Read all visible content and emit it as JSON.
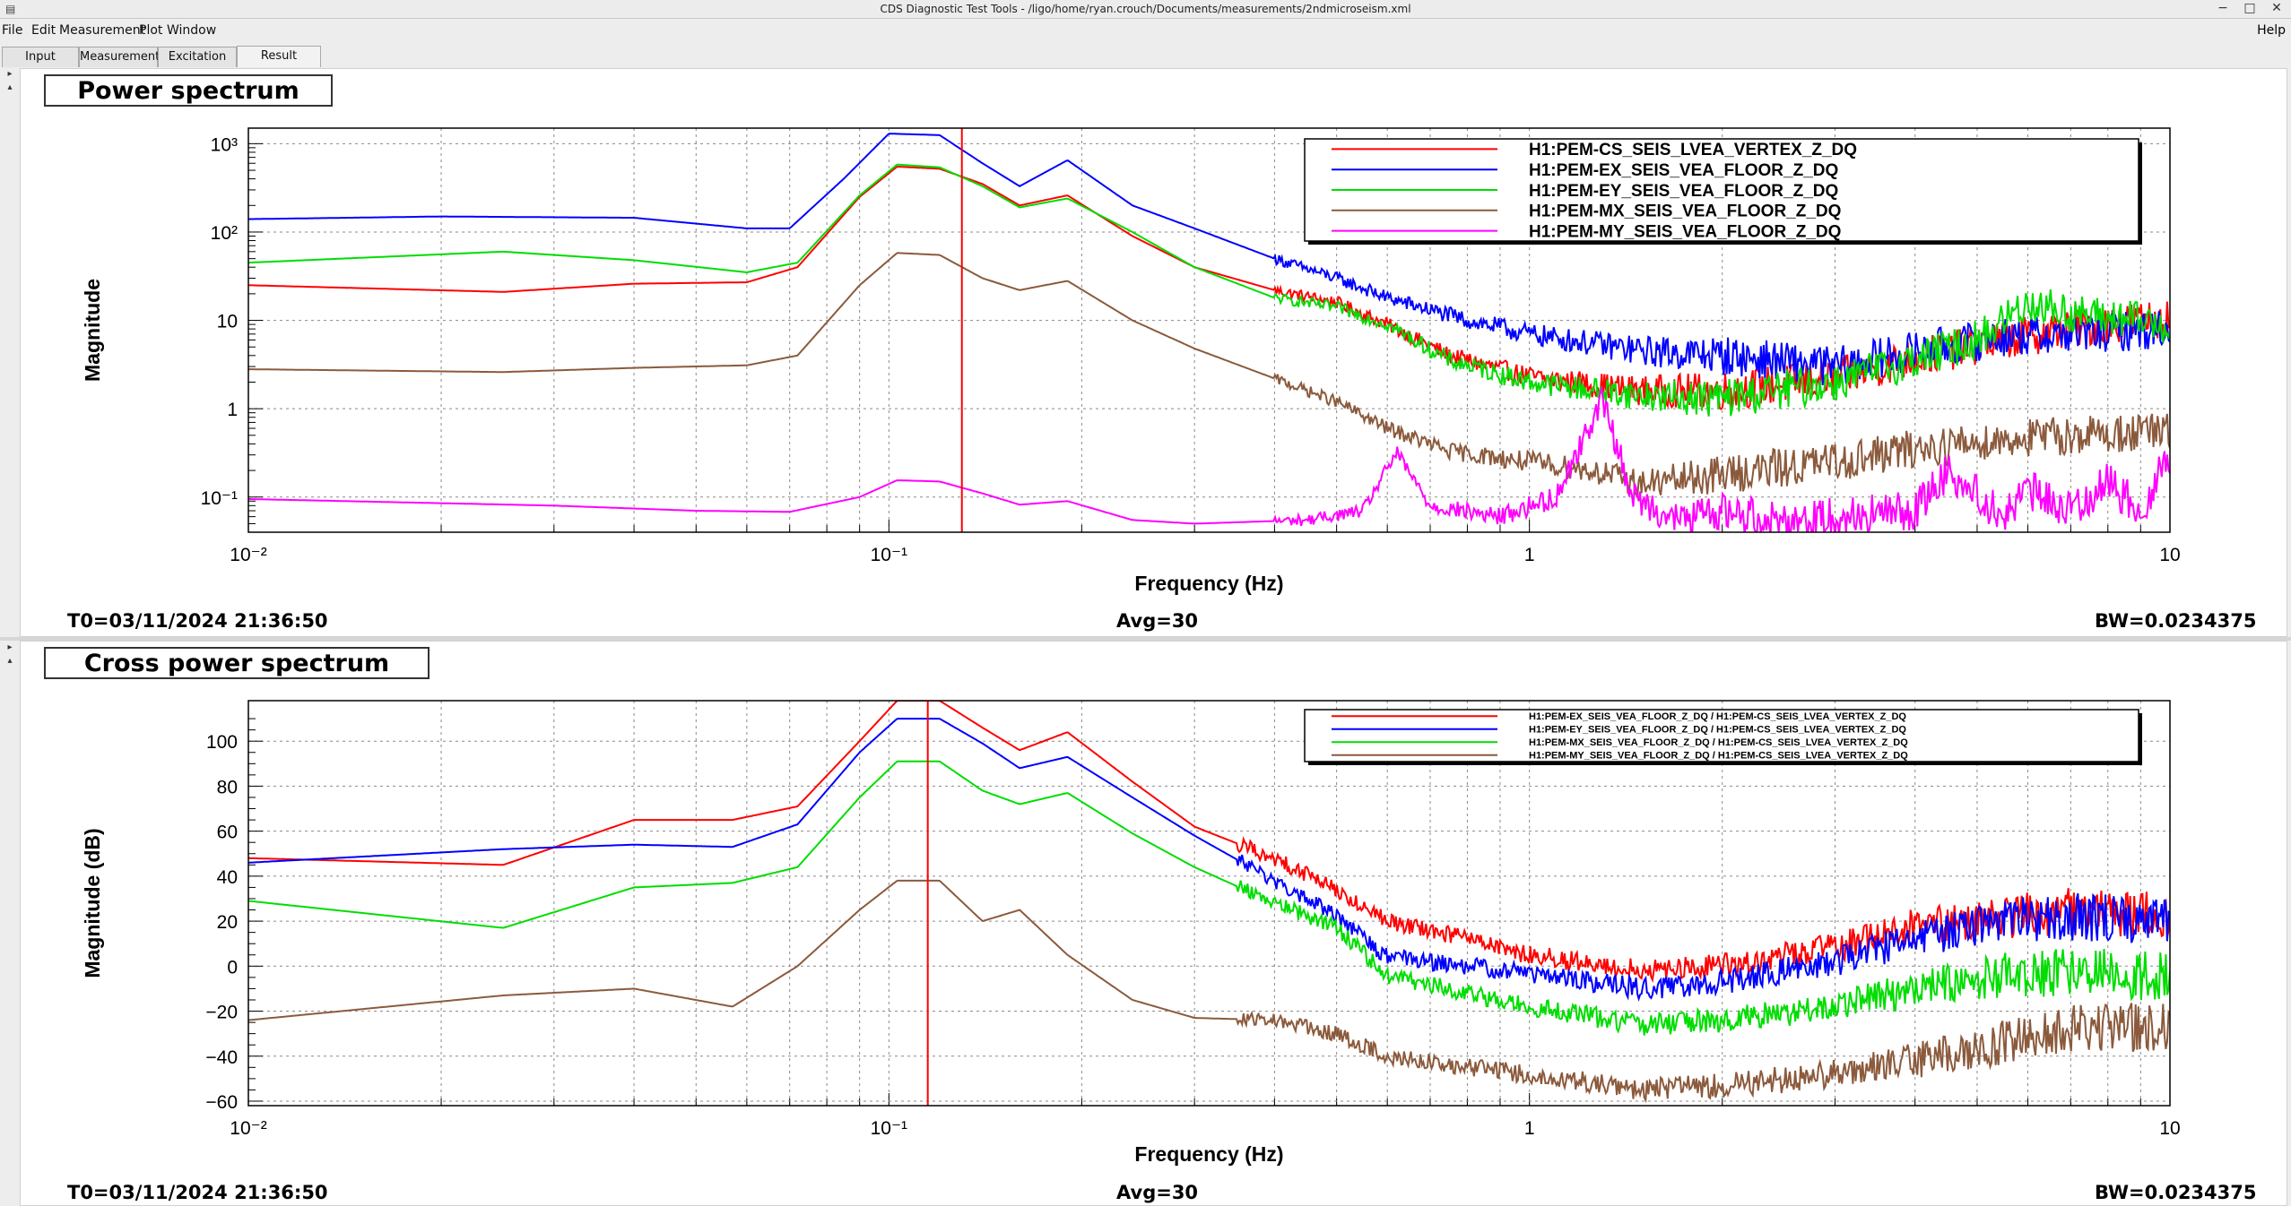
{
  "window": {
    "title": "CDS Diagnostic Test Tools - /ligo/home/ryan.crouch/Documents/measurements/2ndmicroseism.xml",
    "buttons": [
      "−",
      "□",
      "✕"
    ]
  },
  "menu": {
    "items": [
      "File",
      "Edit",
      "Measurement",
      "Plot",
      "Window"
    ],
    "help": "Help"
  },
  "tabs": [
    {
      "label": "Input"
    },
    {
      "label": "Measurement"
    },
    {
      "label": "Excitation"
    },
    {
      "label": "Result",
      "active": true
    }
  ],
  "panels": [
    {
      "title": "Power spectrum",
      "t0": "T0=03/11/2024 21:36:50",
      "avg": "Avg=30",
      "bw": "BW=0.0234375"
    },
    {
      "title": "Cross power spectrum",
      "t0": "T0=03/11/2024 21:36:50",
      "avg": "Avg=30",
      "bw": "BW=0.0234375"
    }
  ],
  "chart_data": [
    {
      "type": "line",
      "title": "Power spectrum",
      "xlabel": "Frequency (Hz)",
      "ylabel": "Magnitude",
      "xscale": "log",
      "yscale": "log",
      "xlim": [
        0.01,
        10
      ],
      "ylim": [
        0.04,
        1500
      ],
      "grid": true,
      "legend_position": "top-right",
      "cursor_x": 0.13,
      "x_ticks": [
        {
          "value": 0.01,
          "label": "10⁻²"
        },
        {
          "value": 0.1,
          "label": "10⁻¹"
        },
        {
          "value": 1,
          "label": "1"
        },
        {
          "value": 10,
          "label": "10"
        }
      ],
      "y_ticks": [
        {
          "value": 0.1,
          "label": "10⁻¹"
        },
        {
          "value": 1,
          "label": "1"
        },
        {
          "value": 10,
          "label": "10"
        },
        {
          "value": 100,
          "label": "10²"
        },
        {
          "value": 1000,
          "label": "10³"
        }
      ],
      "series": [
        {
          "name": "H1:PEM-CS_SEIS_LVEA_VERTEX_Z_DQ",
          "color": "#ff0000",
          "points": [
            [
              0.01,
              25
            ],
            [
              0.025,
              21
            ],
            [
              0.04,
              26
            ],
            [
              0.06,
              27
            ],
            [
              0.072,
              40
            ],
            [
              0.09,
              250
            ],
            [
              0.103,
              550
            ],
            [
              0.12,
              520
            ],
            [
              0.14,
              350
            ],
            [
              0.16,
              200
            ],
            [
              0.19,
              260
            ],
            [
              0.24,
              90
            ],
            [
              0.3,
              40
            ],
            [
              0.4,
              22
            ],
            [
              0.5,
              16
            ],
            [
              0.6,
              9
            ],
            [
              0.75,
              4
            ],
            [
              1,
              2.3
            ],
            [
              1.5,
              1.6
            ],
            [
              2,
              1.6
            ],
            [
              3,
              2.2
            ],
            [
              4,
              3.8
            ],
            [
              5.5,
              6
            ],
            [
              7,
              8
            ],
            [
              10,
              11
            ]
          ]
        },
        {
          "name": "H1:PEM-EX_SEIS_VEA_FLOOR_Z_DQ",
          "color": "#0000ff",
          "points": [
            [
              0.01,
              140
            ],
            [
              0.02,
              150
            ],
            [
              0.04,
              145
            ],
            [
              0.06,
              110
            ],
            [
              0.07,
              110
            ],
            [
              0.085,
              400
            ],
            [
              0.1,
              1300
            ],
            [
              0.12,
              1250
            ],
            [
              0.14,
              600
            ],
            [
              0.16,
              330
            ],
            [
              0.19,
              650
            ],
            [
              0.24,
              200
            ],
            [
              0.3,
              110
            ],
            [
              0.4,
              50
            ],
            [
              0.5,
              30
            ],
            [
              0.6,
              18
            ],
            [
              0.8,
              10
            ],
            [
              1,
              7
            ],
            [
              1.5,
              4.5
            ],
            [
              2,
              4
            ],
            [
              3,
              3
            ],
            [
              4,
              4.5
            ],
            [
              5.5,
              6.5
            ],
            [
              7,
              7
            ],
            [
              10,
              8
            ]
          ]
        },
        {
          "name": "H1:PEM-EY_SEIS_VEA_FLOOR_Z_DQ",
          "color": "#00dd00",
          "points": [
            [
              0.01,
              45
            ],
            [
              0.025,
              60
            ],
            [
              0.04,
              48
            ],
            [
              0.06,
              35
            ],
            [
              0.072,
              45
            ],
            [
              0.09,
              260
            ],
            [
              0.103,
              580
            ],
            [
              0.12,
              540
            ],
            [
              0.14,
              330
            ],
            [
              0.16,
              190
            ],
            [
              0.19,
              240
            ],
            [
              0.24,
              100
            ],
            [
              0.3,
              40
            ],
            [
              0.4,
              18
            ],
            [
              0.5,
              14
            ],
            [
              0.6,
              9
            ],
            [
              0.75,
              3.5
            ],
            [
              1,
              2
            ],
            [
              1.5,
              1.4
            ],
            [
              2,
              1.3
            ],
            [
              3,
              2
            ],
            [
              4,
              3.6
            ],
            [
              5,
              6
            ],
            [
              6,
              16
            ],
            [
              7,
              12
            ],
            [
              10,
              9
            ]
          ]
        },
        {
          "name": "H1:PEM-MX_SEIS_VEA_FLOOR_Z_DQ",
          "color": "#8b5a3c",
          "points": [
            [
              0.01,
              2.8
            ],
            [
              0.025,
              2.6
            ],
            [
              0.04,
              2.9
            ],
            [
              0.06,
              3.1
            ],
            [
              0.072,
              4
            ],
            [
              0.09,
              25
            ],
            [
              0.103,
              58
            ],
            [
              0.12,
              55
            ],
            [
              0.14,
              30
            ],
            [
              0.16,
              22
            ],
            [
              0.19,
              28
            ],
            [
              0.24,
              10
            ],
            [
              0.3,
              4.8
            ],
            [
              0.4,
              2.2
            ],
            [
              0.5,
              1.2
            ],
            [
              0.6,
              0.6
            ],
            [
              0.75,
              0.33
            ],
            [
              1,
              0.25
            ],
            [
              1.25,
              0.2
            ],
            [
              1.5,
              0.14
            ],
            [
              2,
              0.18
            ],
            [
              3,
              0.25
            ],
            [
              4,
              0.35
            ],
            [
              5.5,
              0.45
            ],
            [
              7,
              0.5
            ],
            [
              10,
              0.55
            ]
          ]
        },
        {
          "name": "H1:PEM-MY_SEIS_VEA_FLOOR_Z_DQ",
          "color": "#ff00ff",
          "points": [
            [
              0.01,
              0.095
            ],
            [
              0.03,
              0.08
            ],
            [
              0.05,
              0.07
            ],
            [
              0.07,
              0.068
            ],
            [
              0.09,
              0.1
            ],
            [
              0.103,
              0.155
            ],
            [
              0.12,
              0.15
            ],
            [
              0.14,
              0.11
            ],
            [
              0.16,
              0.082
            ],
            [
              0.19,
              0.09
            ],
            [
              0.24,
              0.055
            ],
            [
              0.3,
              0.05
            ],
            [
              0.45,
              0.055
            ],
            [
              0.55,
              0.07
            ],
            [
              0.62,
              0.32
            ],
            [
              0.7,
              0.08
            ],
            [
              0.9,
              0.06
            ],
            [
              1.1,
              0.1
            ],
            [
              1.3,
              1.3
            ],
            [
              1.45,
              0.1
            ],
            [
              1.7,
              0.055
            ],
            [
              2,
              0.07
            ],
            [
              2.5,
              0.055
            ],
            [
              3,
              0.06
            ],
            [
              4,
              0.07
            ],
            [
              4.5,
              0.2
            ],
            [
              5.5,
              0.06
            ],
            [
              6,
              0.12
            ],
            [
              7,
              0.07
            ],
            [
              8,
              0.15
            ],
            [
              9,
              0.07
            ],
            [
              10,
              0.3
            ]
          ]
        }
      ]
    },
    {
      "type": "line",
      "title": "Cross power spectrum",
      "xlabel": "Frequency (Hz)",
      "ylabel": "Magnitude (dB)",
      "xscale": "log",
      "yscale": "linear",
      "xlim": [
        0.01,
        10
      ],
      "ylim": [
        -62,
        118
      ],
      "grid": true,
      "legend_position": "top-right",
      "cursor_x": 0.115,
      "x_ticks": [
        {
          "value": 0.01,
          "label": "10⁻²"
        },
        {
          "value": 0.1,
          "label": "10⁻¹"
        },
        {
          "value": 1,
          "label": "1"
        },
        {
          "value": 10,
          "label": "10"
        }
      ],
      "y_ticks": [
        {
          "value": -60,
          "label": "−60"
        },
        {
          "value": -40,
          "label": "−40"
        },
        {
          "value": -20,
          "label": "−20"
        },
        {
          "value": 0,
          "label": "0"
        },
        {
          "value": 20,
          "label": "20"
        },
        {
          "value": 40,
          "label": "40"
        },
        {
          "value": 60,
          "label": "60"
        },
        {
          "value": 80,
          "label": "80"
        },
        {
          "value": 100,
          "label": "100"
        }
      ],
      "series": [
        {
          "name": "H1:PEM-EX_SEIS_VEA_FLOOR_Z_DQ / H1:PEM-CS_SEIS_LVEA_VERTEX_Z_DQ",
          "color": "#ff0000",
          "points": [
            [
              0.01,
              48
            ],
            [
              0.025,
              45
            ],
            [
              0.04,
              65
            ],
            [
              0.057,
              65
            ],
            [
              0.072,
              71
            ],
            [
              0.09,
              100
            ],
            [
              0.103,
              118
            ],
            [
              0.12,
              118
            ],
            [
              0.14,
              106
            ],
            [
              0.16,
              96
            ],
            [
              0.19,
              104
            ],
            [
              0.24,
              82
            ],
            [
              0.3,
              62
            ],
            [
              0.4,
              48
            ],
            [
              0.5,
              34
            ],
            [
              0.6,
              20
            ],
            [
              0.8,
              12
            ],
            [
              1,
              5
            ],
            [
              1.5,
              -2
            ],
            [
              2,
              0
            ],
            [
              3,
              8
            ],
            [
              4,
              18
            ],
            [
              5.5,
              22
            ],
            [
              7,
              24
            ],
            [
              10,
              23
            ]
          ]
        },
        {
          "name": "H1:PEM-EY_SEIS_VEA_FLOOR_Z_DQ / H1:PEM-CS_SEIS_LVEA_VERTEX_Z_DQ",
          "color": "#0000ff",
          "points": [
            [
              0.01,
              46
            ],
            [
              0.025,
              52
            ],
            [
              0.04,
              54
            ],
            [
              0.057,
              53
            ],
            [
              0.072,
              63
            ],
            [
              0.09,
              95
            ],
            [
              0.103,
              110
            ],
            [
              0.12,
              110
            ],
            [
              0.14,
              99
            ],
            [
              0.16,
              88
            ],
            [
              0.19,
              93
            ],
            [
              0.24,
              75
            ],
            [
              0.3,
              58
            ],
            [
              0.4,
              38
            ],
            [
              0.5,
              22
            ],
            [
              0.6,
              4
            ],
            [
              0.8,
              0
            ],
            [
              1,
              -3
            ],
            [
              1.5,
              -10
            ],
            [
              2,
              -7
            ],
            [
              3,
              2
            ],
            [
              4,
              12
            ],
            [
              5.5,
              20
            ],
            [
              7,
              22
            ],
            [
              10,
              20
            ]
          ]
        },
        {
          "name": "H1:PEM-MX_SEIS_VEA_FLOOR_Z_DQ / H1:PEM-CS_SEIS_LVEA_VERTEX_Z_DQ",
          "color": "#00dd00",
          "points": [
            [
              0.01,
              29
            ],
            [
              0.025,
              17
            ],
            [
              0.04,
              35
            ],
            [
              0.057,
              37
            ],
            [
              0.072,
              44
            ],
            [
              0.09,
              75
            ],
            [
              0.103,
              91
            ],
            [
              0.12,
              91
            ],
            [
              0.14,
              78
            ],
            [
              0.16,
              72
            ],
            [
              0.19,
              77
            ],
            [
              0.24,
              59
            ],
            [
              0.3,
              44
            ],
            [
              0.4,
              28
            ],
            [
              0.5,
              17
            ],
            [
              0.6,
              -4
            ],
            [
              0.8,
              -12
            ],
            [
              1,
              -18
            ],
            [
              1.5,
              -26
            ],
            [
              2,
              -24
            ],
            [
              3,
              -18
            ],
            [
              4,
              -10
            ],
            [
              5.5,
              -4
            ],
            [
              7,
              -2
            ],
            [
              10,
              -5
            ]
          ]
        },
        {
          "name": "H1:PEM-MY_SEIS_VEA_FLOOR_Z_DQ / H1:PEM-CS_SEIS_LVEA_VERTEX_Z_DQ",
          "color": "#8b5a3c",
          "points": [
            [
              0.01,
              -24
            ],
            [
              0.025,
              -13
            ],
            [
              0.04,
              -10
            ],
            [
              0.057,
              -18
            ],
            [
              0.072,
              0
            ],
            [
              0.09,
              25
            ],
            [
              0.103,
              38
            ],
            [
              0.12,
              38
            ],
            [
              0.14,
              20
            ],
            [
              0.16,
              25
            ],
            [
              0.19,
              5
            ],
            [
              0.24,
              -15
            ],
            [
              0.3,
              -23
            ],
            [
              0.4,
              -24
            ],
            [
              0.5,
              -30
            ],
            [
              0.6,
              -40
            ],
            [
              0.8,
              -45
            ],
            [
              1,
              -48
            ],
            [
              1.5,
              -55
            ],
            [
              2,
              -53
            ],
            [
              3,
              -48
            ],
            [
              4,
              -42
            ],
            [
              5.5,
              -34
            ],
            [
              7,
              -28
            ],
            [
              10,
              -27
            ]
          ]
        }
      ]
    }
  ]
}
